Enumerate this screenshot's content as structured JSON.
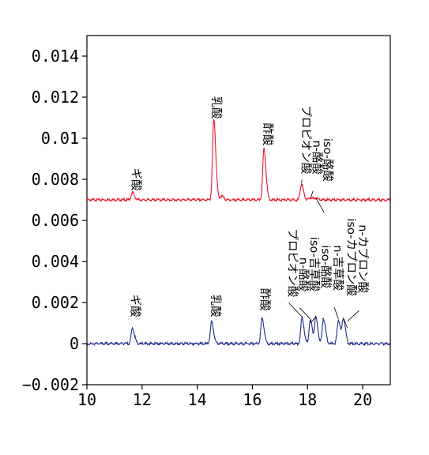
{
  "chart_data": {
    "type": "line",
    "title": "",
    "xlabel": "",
    "ylabel": "",
    "xlim": [
      10,
      21
    ],
    "ylim": [
      -0.002,
      0.015
    ],
    "grid": false,
    "legend": "none",
    "x_ticks": [
      10,
      12,
      14,
      16,
      18,
      20
    ],
    "x_tick_labels": [
      "10",
      "12",
      "14",
      "16",
      "18",
      "20"
    ],
    "y_ticks": [
      -0.002,
      0,
      0.002,
      0.004,
      0.006,
      0.008,
      0.01,
      0.012,
      0.014
    ],
    "y_tick_labels": [
      "−0.002",
      "0",
      "0.002",
      "0.004",
      "0.006",
      "0.008",
      "0.01",
      "0.012",
      "0.014"
    ],
    "series": [
      {
        "color": "#e8192c",
        "baseline": 0.007,
        "peaks": [
          {
            "x": 11.65,
            "y": 0.00735,
            "label": "ギ酸"
          },
          {
            "x": 14.6,
            "y": 0.0109,
            "label": "乳酸"
          },
          {
            "x": 14.88,
            "y": 0.0072,
            "label": ""
          },
          {
            "x": 16.42,
            "y": 0.0095,
            "label": "酢酸"
          },
          {
            "x": 17.78,
            "y": 0.00775,
            "label": "プロピオン酸"
          },
          {
            "x": 18.12,
            "y": 0.0071,
            "label": "n-酪酸"
          },
          {
            "x": 18.3,
            "y": 0.00708,
            "label": "iso-酪酸"
          }
        ]
      },
      {
        "color": "#1f2c8c",
        "baseline": 0.0,
        "peaks": [
          {
            "x": 11.65,
            "y": 0.00075,
            "label": "ギ酸"
          },
          {
            "x": 14.52,
            "y": 0.00105,
            "label": "乳酸"
          },
          {
            "x": 16.35,
            "y": 0.00125,
            "label": "酢酸"
          },
          {
            "x": 17.8,
            "y": 0.00125,
            "label": "プロピオン酸"
          },
          {
            "x": 18.1,
            "y": 0.00115,
            "label": "n-酪酸"
          },
          {
            "x": 18.3,
            "y": 0.00125,
            "label": "iso-吉草酸"
          },
          {
            "x": 18.58,
            "y": 0.0012,
            "label": "iso-酪酸"
          },
          {
            "x": 19.12,
            "y": 0.00115,
            "label": "n-吉草酸"
          },
          {
            "x": 19.3,
            "y": 0.0012,
            "label": "iso-カプロン酸"
          },
          {
            "x": 19.45,
            "y": 0.0,
            "label": "n-カプロン酸"
          }
        ]
      }
    ],
    "red_labels": [
      {
        "text": "ギ酸",
        "x": 11.65,
        "y_top": 0.00855
      },
      {
        "text": "乳酸",
        "x": 14.55,
        "y_top": 0.01205
      },
      {
        "text": "酢酸",
        "x": 16.42,
        "y_top": 0.01075
      },
      {
        "text": "プロピオン酸",
        "x": 17.8,
        "y_top": 0.0116,
        "line_to": {
          "x": 17.78,
          "y": 0.0078
        }
      },
      {
        "text": "n-酪酸",
        "x": 18.2,
        "y_top": 0.0099,
        "line_to": {
          "x": 18.12,
          "y": 0.00712
        }
      },
      {
        "text": "iso-酪酸",
        "x": 18.6,
        "y_top": 0.01,
        "line_to": {
          "x": 18.3,
          "y": 0.0071
        }
      }
    ],
    "blue_labels": [
      {
        "text": "ギ酸",
        "x": 11.62,
        "y_top": 0.0024
      },
      {
        "text": "乳酸",
        "x": 14.52,
        "y_top": 0.0024
      },
      {
        "text": "酢酸",
        "x": 16.32,
        "y_top": 0.0027
      },
      {
        "text": "プロピオン酸",
        "x": 17.32,
        "y_top": 0.0056,
        "line_to": {
          "x": 17.8,
          "y": 0.0013
        }
      },
      {
        "text": "n-酪酸",
        "x": 17.72,
        "y_top": 0.0042,
        "line_to": {
          "x": 18.1,
          "y": 0.0012
        }
      },
      {
        "text": "iso-吉草酸",
        "x": 18.1,
        "y_top": 0.0052,
        "line_to": {
          "x": 18.3,
          "y": 0.0013
        }
      },
      {
        "text": "iso-酪酸",
        "x": 18.52,
        "y_top": 0.0048,
        "line_to": {
          "x": 18.58,
          "y": 0.00125
        }
      },
      {
        "text": "n-吉草酸",
        "x": 18.97,
        "y_top": 0.0048,
        "line_to": {
          "x": 19.12,
          "y": 0.0012
        }
      },
      {
        "text": "iso-カプロン酸",
        "x": 19.45,
        "y_top": 0.0061,
        "line_to": {
          "x": 19.3,
          "y": 0.00125
        }
      },
      {
        "text": "n-カプロン酸",
        "x": 19.87,
        "y_top": 0.0058,
        "line_to": {
          "x": 19.45,
          "y": 0.0011
        }
      }
    ]
  }
}
